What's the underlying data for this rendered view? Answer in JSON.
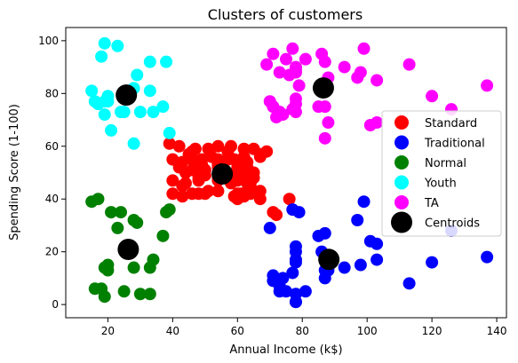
{
  "chart_data": {
    "type": "scatter",
    "title": "Clusters of customers",
    "xlabel": "Annual Income (k$)",
    "ylabel": "Spending Score (1-100)",
    "xlim": [
      7,
      143
    ],
    "ylim": [
      -5,
      105
    ],
    "xticks": [
      20,
      40,
      60,
      80,
      100,
      120,
      140
    ],
    "yticks": [
      0,
      20,
      40,
      60,
      80,
      100
    ],
    "grid": false,
    "legend_position": "center-right",
    "series": [
      {
        "name": "Standard",
        "color": "#ff0000",
        "points": [
          [
            39,
            61
          ],
          [
            40,
            55
          ],
          [
            40,
            47
          ],
          [
            40,
            42
          ],
          [
            42,
            52
          ],
          [
            42,
            60
          ],
          [
            43,
            54
          ],
          [
            43,
            45
          ],
          [
            43,
            41
          ],
          [
            44,
            50
          ],
          [
            44,
            46
          ],
          [
            45,
            57
          ],
          [
            46,
            51
          ],
          [
            46,
            55
          ],
          [
            46,
            58
          ],
          [
            46,
            42
          ],
          [
            47,
            52
          ],
          [
            47,
            59
          ],
          [
            48,
            50
          ],
          [
            48,
            47
          ],
          [
            48,
            42
          ],
          [
            48,
            48
          ],
          [
            49,
            55
          ],
          [
            49,
            53
          ],
          [
            50,
            49
          ],
          [
            50,
            51
          ],
          [
            50,
            42
          ],
          [
            51,
            43
          ],
          [
            51,
            59
          ],
          [
            52,
            56
          ],
          [
            54,
            53
          ],
          [
            54,
            55
          ],
          [
            54,
            43
          ],
          [
            54,
            48
          ],
          [
            54,
            52
          ],
          [
            54,
            47
          ],
          [
            54,
            54
          ],
          [
            54,
            60
          ],
          [
            57,
            58
          ],
          [
            57,
            55
          ],
          [
            58,
            60
          ],
          [
            58,
            46
          ],
          [
            59,
            55
          ],
          [
            59,
            41
          ],
          [
            60,
            49
          ],
          [
            60,
            40
          ],
          [
            60,
            42
          ],
          [
            60,
            52
          ],
          [
            60,
            47
          ],
          [
            60,
            50
          ],
          [
            61,
            42
          ],
          [
            61,
            49
          ],
          [
            62,
            41
          ],
          [
            62,
            48
          ],
          [
            62,
            59
          ],
          [
            62,
            55
          ],
          [
            62,
            56
          ],
          [
            62,
            42
          ],
          [
            63,
            50
          ],
          [
            63,
            46
          ],
          [
            63,
            43
          ],
          [
            63,
            48
          ],
          [
            63,
            52
          ],
          [
            63,
            54
          ],
          [
            64,
            42
          ],
          [
            64,
            46
          ],
          [
            65,
            48
          ],
          [
            65,
            50
          ],
          [
            65,
            43
          ],
          [
            65,
            59
          ],
          [
            67,
            43
          ],
          [
            67,
            57
          ],
          [
            67,
            56
          ],
          [
            67,
            40
          ],
          [
            69,
            58
          ],
          [
            71,
            35
          ],
          [
            72,
            34
          ],
          [
            76,
            40
          ]
        ]
      },
      {
        "name": "Traditional",
        "color": "#0000ff",
        "points": [
          [
            70,
            29
          ],
          [
            71,
            11
          ],
          [
            71,
            9
          ],
          [
            73,
            5
          ],
          [
            73,
            7
          ],
          [
            74,
            10
          ],
          [
            75,
            5
          ],
          [
            77,
            12
          ],
          [
            77,
            36
          ],
          [
            78,
            22
          ],
          [
            78,
            17
          ],
          [
            78,
            20
          ],
          [
            78,
            16
          ],
          [
            78,
            1
          ],
          [
            78,
            1
          ],
          [
            78,
            4
          ],
          [
            79,
            35
          ],
          [
            81,
            5
          ],
          [
            85,
            26
          ],
          [
            86,
            20
          ],
          [
            87,
            27
          ],
          [
            87,
            13
          ],
          [
            87,
            10
          ],
          [
            88,
            13
          ],
          [
            88,
            15
          ],
          [
            93,
            14
          ],
          [
            97,
            32
          ],
          [
            98,
            15
          ],
          [
            99,
            39
          ],
          [
            101,
            24
          ],
          [
            103,
            17
          ],
          [
            103,
            23
          ],
          [
            113,
            8
          ],
          [
            120,
            16
          ],
          [
            126,
            28
          ],
          [
            137,
            18
          ]
        ]
      },
      {
        "name": "Normal",
        "color": "#008000",
        "points": [
          [
            15,
            39
          ],
          [
            16,
            6
          ],
          [
            17,
            40
          ],
          [
            18,
            6
          ],
          [
            19,
            3
          ],
          [
            19,
            14
          ],
          [
            20,
            15
          ],
          [
            20,
            13
          ],
          [
            21,
            35
          ],
          [
            23,
            29
          ],
          [
            24,
            35
          ],
          [
            25,
            5
          ],
          [
            28,
            14
          ],
          [
            28,
            32
          ],
          [
            29,
            31
          ],
          [
            30,
            4
          ],
          [
            33,
            4
          ],
          [
            33,
            14
          ],
          [
            34,
            17
          ],
          [
            37,
            26
          ],
          [
            38,
            35
          ],
          [
            39,
            36
          ]
        ]
      },
      {
        "name": "Youth",
        "color": "#00ffff",
        "points": [
          [
            15,
            81
          ],
          [
            16,
            77
          ],
          [
            17,
            76
          ],
          [
            18,
            94
          ],
          [
            19,
            72
          ],
          [
            19,
            99
          ],
          [
            19,
            77
          ],
          [
            20,
            77
          ],
          [
            20,
            79
          ],
          [
            21,
            66
          ],
          [
            23,
            98
          ],
          [
            24,
            73
          ],
          [
            25,
            73
          ],
          [
            28,
            82
          ],
          [
            28,
            61
          ],
          [
            29,
            87
          ],
          [
            30,
            73
          ],
          [
            33,
            92
          ],
          [
            33,
            81
          ],
          [
            34,
            73
          ],
          [
            37,
            75
          ],
          [
            38,
            92
          ],
          [
            39,
            65
          ]
        ]
      },
      {
        "name": "TA",
        "color": "#ff00ff",
        "points": [
          [
            69,
            91
          ],
          [
            70,
            77
          ],
          [
            71,
            95
          ],
          [
            71,
            75
          ],
          [
            71,
            75
          ],
          [
            72,
            71
          ],
          [
            73,
            88
          ],
          [
            73,
            73
          ],
          [
            74,
            72
          ],
          [
            75,
            93
          ],
          [
            76,
            87
          ],
          [
            77,
            97
          ],
          [
            77,
            74
          ],
          [
            78,
            90
          ],
          [
            78,
            88
          ],
          [
            78,
            76
          ],
          [
            78,
            89
          ],
          [
            78,
            78
          ],
          [
            78,
            73
          ],
          [
            79,
            83
          ],
          [
            81,
            93
          ],
          [
            85,
            75
          ],
          [
            86,
            95
          ],
          [
            87,
            63
          ],
          [
            87,
            75
          ],
          [
            87,
            92
          ],
          [
            88,
            86
          ],
          [
            88,
            69
          ],
          [
            93,
            90
          ],
          [
            97,
            86
          ],
          [
            98,
            88
          ],
          [
            99,
            97
          ],
          [
            101,
            68
          ],
          [
            103,
            85
          ],
          [
            103,
            69
          ],
          [
            113,
            91
          ],
          [
            120,
            79
          ],
          [
            126,
            74
          ],
          [
            137,
            83
          ]
        ]
      }
    ],
    "centroids": {
      "name": "Centroids",
      "color": "#000000",
      "points": [
        [
          55.3,
          49.5
        ],
        [
          88.2,
          17.1
        ],
        [
          26.3,
          20.9
        ],
        [
          25.7,
          79.4
        ],
        [
          86.5,
          82.1
        ]
      ]
    }
  }
}
